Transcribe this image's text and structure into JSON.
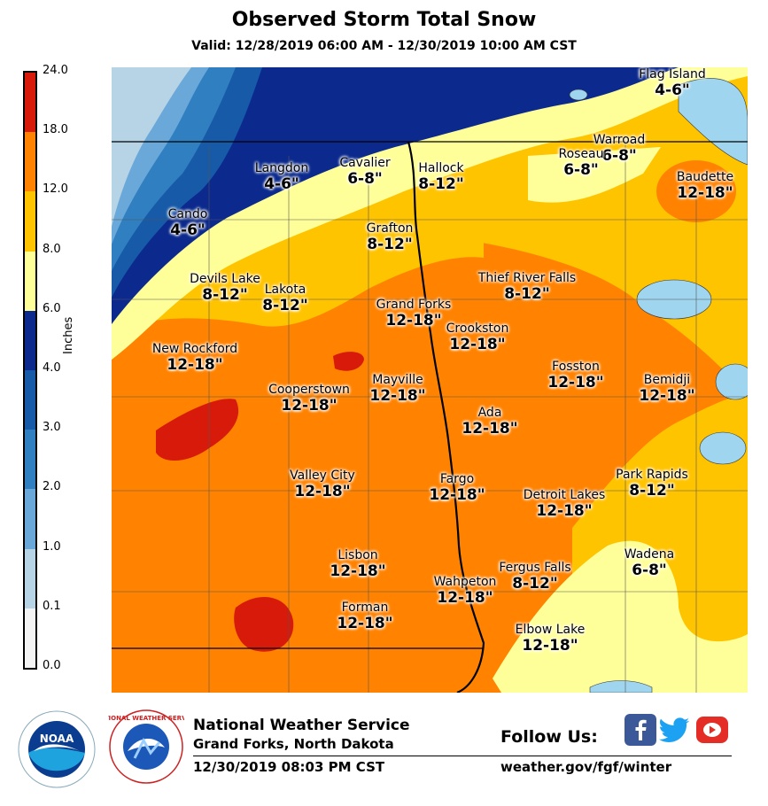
{
  "header": {
    "title": "Observed Storm Total Snow",
    "subtitle": "Valid: 12/28/2019 06:00 AM - 12/30/2019 10:00 AM CST"
  },
  "legend": {
    "title": "Inches",
    "ticks": [
      "24.0",
      "18.0",
      "12.0",
      "8.0",
      "6.0",
      "4.0",
      "3.0",
      "2.0",
      "1.0",
      "0.1",
      "0.0"
    ],
    "colors": [
      "#d81a0a",
      "#ff8300",
      "#ffc400",
      "#ffff99",
      "#0c2a8e",
      "#175aa8",
      "#2f7fc1",
      "#6aa8d9",
      "#b7d3e6",
      "#f4f4f4"
    ]
  },
  "map": {
    "colors": {
      "tier_4_6": "#0c2a8e",
      "tier_6_8": "#ffff99",
      "tier_8_12": "#ffc400",
      "tier_12_18": "#ff8300",
      "tier_18_24": "#d81a0a",
      "tier_3_4": "#175aa8",
      "tier_2_3": "#2f7fc1",
      "tier_1_2": "#6aa8d9",
      "tier_01_1": "#b7d3e6",
      "lake": "#9fd5ee"
    },
    "cities": [
      {
        "name": "Flag Island",
        "amount": "4-6\""
      },
      {
        "name": "Warroad",
        "amount": "6-8\""
      },
      {
        "name": "Roseau",
        "amount": "6-8\""
      },
      {
        "name": "Baudette",
        "amount": "12-18\""
      },
      {
        "name": "Langdon",
        "amount": "4-6\""
      },
      {
        "name": "Cavalier",
        "amount": "6-8\""
      },
      {
        "name": "Hallock",
        "amount": "8-12\""
      },
      {
        "name": "Cando",
        "amount": "4-6\""
      },
      {
        "name": "Grafton",
        "amount": "8-12\""
      },
      {
        "name": "Devils Lake",
        "amount": "8-12\""
      },
      {
        "name": "Lakota",
        "amount": "8-12\""
      },
      {
        "name": "Thief River Falls",
        "amount": "8-12\""
      },
      {
        "name": "Grand Forks",
        "amount": "12-18\""
      },
      {
        "name": "Crookston",
        "amount": "12-18\""
      },
      {
        "name": "New Rockford",
        "amount": "12-18\""
      },
      {
        "name": "Fosston",
        "amount": "12-18\""
      },
      {
        "name": "Bemidji",
        "amount": "12-18\""
      },
      {
        "name": "Cooperstown",
        "amount": "12-18\""
      },
      {
        "name": "Mayville",
        "amount": "12-18\""
      },
      {
        "name": "Ada",
        "amount": "12-18\""
      },
      {
        "name": "Valley City",
        "amount": "12-18\""
      },
      {
        "name": "Fargo",
        "amount": "12-18\""
      },
      {
        "name": "Detroit Lakes",
        "amount": "12-18\""
      },
      {
        "name": "Park Rapids",
        "amount": "8-12\""
      },
      {
        "name": "Lisbon",
        "amount": "12-18\""
      },
      {
        "name": "Wahpeton",
        "amount": "12-18\""
      },
      {
        "name": "Fergus Falls",
        "amount": "8-12\""
      },
      {
        "name": "Wadena",
        "amount": "6-8\""
      },
      {
        "name": "Forman",
        "amount": "12-18\""
      },
      {
        "name": "Elbow Lake",
        "amount": "12-18\""
      }
    ]
  },
  "footer": {
    "org": "National Weather Service",
    "office": "Grand Forks, North Dakota",
    "issued": "12/30/2019 08:03 PM CST",
    "follow": "Follow Us:",
    "site": "weather.gov/fgf/winter",
    "noaa_logo": "NOAA",
    "nws_logo": "NATIONAL WEATHER SERVICE",
    "social_icons": [
      "facebook-icon",
      "twitter-icon",
      "youtube-icon"
    ]
  }
}
